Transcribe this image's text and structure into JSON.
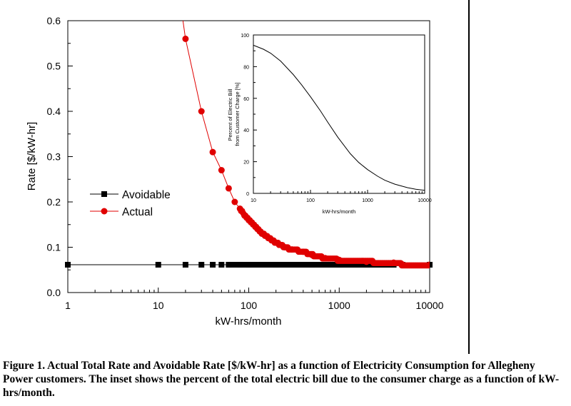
{
  "chart_data": [
    {
      "type": "line",
      "xlabel": "kW-hrs/month",
      "ylabel": "Rate [$/kW-hr]",
      "xscale": "log",
      "xlim": [
        1,
        10000
      ],
      "ylim": [
        0,
        0.6
      ],
      "x_ticks": [
        "1",
        "10",
        "100",
        "1000",
        "10000"
      ],
      "y_ticks": [
        "0.0",
        "0.1",
        "0.2",
        "0.3",
        "0.4",
        "0.5",
        "0.6"
      ],
      "legend": {
        "position": "middle-left"
      },
      "series": [
        {
          "name": "Avoidable",
          "color": "#000000",
          "marker": "square",
          "points": [
            [
              1,
              0.0614
            ],
            [
              10,
              0.0614
            ],
            [
              20,
              0.0614
            ],
            [
              30,
              0.0614
            ],
            [
              40,
              0.0614
            ],
            [
              50,
              0.0614
            ],
            [
              60,
              0.0614
            ],
            [
              80,
              0.0614
            ],
            [
              100,
              0.0614
            ],
            [
              200,
              0.0614
            ],
            [
              500,
              0.0614
            ],
            [
              1000,
              0.0614
            ],
            [
              2000,
              0.0614
            ],
            [
              4000,
              0.0614
            ],
            [
              5000,
              0.0614
            ],
            [
              10000,
              0.0614
            ]
          ]
        },
        {
          "name": "Actual",
          "color": "#e00000",
          "marker": "circle",
          "points": [
            [
              20,
              0.56
            ],
            [
              30,
              0.4
            ],
            [
              40,
              0.31
            ],
            [
              50,
              0.27
            ],
            [
              60,
              0.23
            ],
            [
              70,
              0.2
            ],
            [
              80,
              0.185
            ],
            [
              90,
              0.17
            ],
            [
              100,
              0.16
            ],
            [
              120,
              0.145
            ],
            [
              140,
              0.13
            ],
            [
              170,
              0.12
            ],
            [
              200,
              0.11
            ],
            [
              250,
              0.1
            ],
            [
              300,
              0.095
            ],
            [
              400,
              0.09
            ],
            [
              500,
              0.083
            ],
            [
              700,
              0.076
            ],
            [
              1000,
              0.072
            ],
            [
              2000,
              0.068
            ],
            [
              4000,
              0.066
            ],
            [
              5000,
              0.062
            ],
            [
              10000,
              0.0614
            ]
          ]
        }
      ]
    },
    {
      "type": "line",
      "xlabel": "kW-hrs/month",
      "ylabel": "Percent of Electric Bill from Customer Charge [%]",
      "ylabel_lines": [
        "Percent of Electric Bill",
        "from Customer Charge [%]"
      ],
      "xscale": "log",
      "xlim": [
        10,
        10000
      ],
      "ylim": [
        0,
        100
      ],
      "x_ticks": [
        "10",
        "100",
        "1000",
        "10000"
      ],
      "y_ticks": [
        "0",
        "20",
        "40",
        "60",
        "80",
        "100"
      ],
      "series": [
        {
          "color": "#000000",
          "points": [
            [
              10,
              93.5
            ],
            [
              15,
              91
            ],
            [
              20,
              88.5
            ],
            [
              30,
              83.5
            ],
            [
              50,
              75
            ],
            [
              70,
              68.5
            ],
            [
              100,
              61
            ],
            [
              150,
              52
            ],
            [
              200,
              45
            ],
            [
              300,
              35.5
            ],
            [
              500,
              25
            ],
            [
              700,
              19.5
            ],
            [
              1000,
              15
            ],
            [
              1500,
              10.8
            ],
            [
              2000,
              8.3
            ],
            [
              3000,
              5.8
            ],
            [
              5000,
              3.6
            ],
            [
              7000,
              2.6
            ],
            [
              10000,
              1.9
            ]
          ]
        }
      ]
    }
  ],
  "caption": "Figure 1. Actual Total Rate and Avoidable Rate [$/kW-hr] as a function of Electricity Consumption for Allegheny Power customers.  The inset shows the percent of the total electric bill due to the consumer charge as a function of kW-hrs/month."
}
